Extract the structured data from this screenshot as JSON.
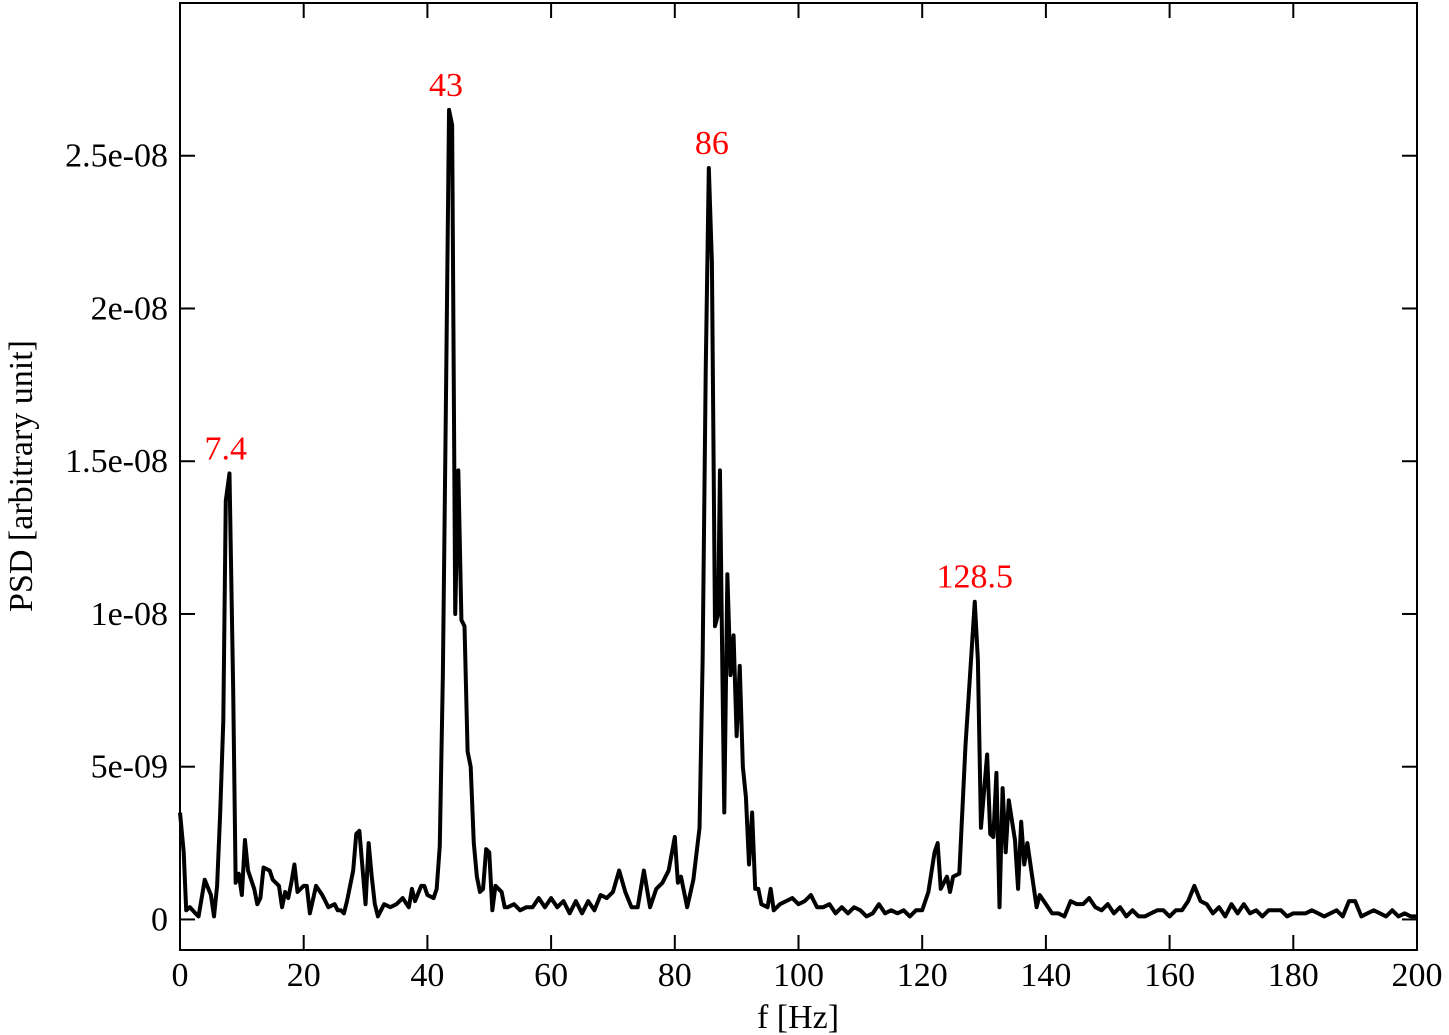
{
  "chart_data": {
    "type": "line",
    "xlabel": "f [Hz]",
    "ylabel": "PSD [arbitrary unit]",
    "color": "#000000",
    "xlim": [
      0,
      200
    ],
    "xticks": [
      0,
      20,
      40,
      60,
      80,
      100,
      120,
      140,
      160,
      180,
      200
    ],
    "ylim": [
      -1e-09,
      3e-08
    ],
    "yticks": [
      {
        "value": 0,
        "label": "0"
      },
      {
        "value": 5e-09,
        "label": "5e-09"
      },
      {
        "value": 1e-08,
        "label": "1e-08"
      },
      {
        "value": 1.5e-08,
        "label": "1.5e-08"
      },
      {
        "value": 2e-08,
        "label": "2e-08"
      },
      {
        "value": 2.5e-08,
        "label": "2.5e-08"
      }
    ],
    "annotations": [
      {
        "label": "7.4",
        "x": 7.4,
        "color": "#ff0000"
      },
      {
        "label": "43",
        "x": 43,
        "color": "#ff0000"
      },
      {
        "label": "86",
        "x": 86,
        "color": "#ff0000"
      },
      {
        "label": "128.5",
        "x": 128.5,
        "color": "#ff0000"
      }
    ],
    "x": [
      0,
      0.6,
      1,
      1.6,
      2.5,
      3,
      4,
      5,
      5.5,
      6,
      6.5,
      7,
      7.4,
      8,
      8.6,
      9,
      9.5,
      10,
      10.5,
      11,
      12,
      12.5,
      13,
      13.5,
      14.5,
      15,
      16,
      16.5,
      17,
      17.5,
      18,
      18.5,
      19,
      20,
      20.5,
      21,
      22,
      23,
      24,
      25,
      25.5,
      26,
      26.5,
      27,
      28,
      28.5,
      29,
      30,
      30.5,
      31,
      31.5,
      32,
      33,
      34,
      35,
      36,
      37,
      37.5,
      38,
      39,
      39.5,
      40,
      41,
      41.5,
      42,
      42.5,
      43,
      43.5,
      44,
      44.5,
      45,
      45.5,
      46,
      46.5,
      47,
      47.5,
      48,
      48.5,
      49,
      49.5,
      50,
      50.5,
      51,
      52,
      52.5,
      53,
      54,
      55,
      56,
      57,
      58,
      59,
      60,
      61,
      62,
      63,
      64,
      65,
      66,
      67,
      68,
      69,
      70,
      71,
      72,
      73,
      74,
      75,
      76,
      77,
      78,
      79,
      80,
      80.5,
      81,
      82,
      83,
      84,
      84.5,
      85,
      85.5,
      86,
      86.5,
      87,
      87.3,
      87.7,
      88,
      88.5,
      89,
      89.5,
      90,
      90.5,
      91,
      91.5,
      92,
      92.5,
      93,
      93.5,
      94,
      95,
      95.5,
      96,
      97,
      98,
      99,
      100,
      101,
      102,
      103,
      104,
      105,
      106,
      107,
      108,
      109,
      110,
      111,
      112,
      113,
      114,
      115,
      116,
      117,
      118,
      119,
      120,
      121,
      122,
      122.5,
      123,
      124,
      124.5,
      125,
      126,
      127,
      128.5,
      129,
      129.5,
      130.5,
      131,
      131.5,
      132,
      132.5,
      133,
      133.5,
      134,
      135,
      135.5,
      136,
      136.5,
      137,
      138,
      138.5,
      139,
      140,
      141,
      142,
      143,
      144,
      145,
      146,
      147,
      148,
      149,
      150,
      151,
      152,
      153,
      154,
      155,
      156,
      157,
      158,
      159,
      160,
      161,
      162,
      163,
      164,
      165,
      166,
      167,
      168,
      169,
      170,
      171,
      172,
      173,
      174,
      175,
      176,
      177,
      178,
      179,
      180,
      181,
      182,
      183,
      184,
      185,
      186,
      187,
      188,
      189,
      190,
      191,
      192,
      193,
      194,
      195,
      196,
      197,
      198,
      199,
      200
    ],
    "values": [
      3.5e-09,
      2.2e-09,
      3e-10,
      4e-10,
      2e-10,
      1e-10,
      1.3e-09,
      8e-10,
      1e-10,
      1.1e-09,
      3.5e-09,
      6.5e-09,
      1.37e-08,
      1.46e-08,
      7.5e-09,
      1.2e-09,
      1.5e-09,
      8e-10,
      2.6e-09,
      1.6e-09,
      1e-09,
      5e-10,
      7e-10,
      1.7e-09,
      1.6e-09,
      1.3e-09,
      1.1e-09,
      4e-10,
      9e-10,
      7e-10,
      1.2e-09,
      1.8e-09,
      9e-10,
      1.1e-09,
      1.1e-09,
      2e-10,
      1.1e-09,
      8e-10,
      4e-10,
      5e-10,
      3e-10,
      3e-10,
      2e-10,
      6e-10,
      1.6e-09,
      2.8e-09,
      2.9e-09,
      5e-10,
      2.5e-09,
      1.4e-09,
      5e-10,
      1e-10,
      5e-10,
      4e-10,
      5e-10,
      7e-10,
      4e-10,
      1e-09,
      6e-10,
      1.1e-09,
      1.1e-09,
      8e-10,
      7e-10,
      1e-09,
      2.4e-09,
      8e-09,
      1.7e-08,
      2.65e-08,
      2.6e-08,
      1e-08,
      1.47e-08,
      9.8e-09,
      9.6e-09,
      5.5e-09,
      5e-09,
      2.5e-09,
      1.4e-09,
      9e-10,
      1e-09,
      2.3e-09,
      2.2e-09,
      3e-10,
      1.1e-09,
      9e-10,
      4e-10,
      4e-10,
      5e-10,
      3e-10,
      4e-10,
      4e-10,
      7e-10,
      4e-10,
      7e-10,
      4e-10,
      6e-10,
      2e-10,
      6e-10,
      2e-10,
      6e-10,
      3e-10,
      8e-10,
      7e-10,
      9e-10,
      1.6e-09,
      9e-10,
      4e-10,
      4e-10,
      1.6e-09,
      4e-10,
      1e-09,
      1.2e-09,
      1.6e-09,
      2.7e-09,
      1.2e-09,
      1.4e-09,
      4e-10,
      1.3e-09,
      3e-09,
      8.5e-09,
      1.8e-08,
      2.46e-08,
      2.15e-08,
      9.6e-09,
      1e-08,
      1.47e-08,
      8e-09,
      3.5e-09,
      1.13e-08,
      8e-09,
      9.3e-09,
      6e-09,
      8.3e-09,
      5e-09,
      4e-09,
      1.8e-09,
      3.5e-09,
      1e-09,
      1e-09,
      5e-10,
      4e-10,
      1e-09,
      3e-10,
      5e-10,
      6e-10,
      7e-10,
      5e-10,
      6e-10,
      8e-10,
      4e-10,
      4e-10,
      5e-10,
      2e-10,
      4e-10,
      2e-10,
      4e-10,
      3e-10,
      1e-10,
      2e-10,
      5e-10,
      2e-10,
      3e-10,
      2e-10,
      3e-10,
      1e-10,
      3e-10,
      3e-10,
      9e-10,
      2.2e-09,
      2.5e-09,
      1e-09,
      1.4e-09,
      9e-10,
      1.4e-09,
      1.5e-09,
      5.7e-09,
      1.04e-08,
      8.5e-09,
      3e-09,
      5.4e-09,
      2.8e-09,
      2.7e-09,
      4.8e-09,
      4e-10,
      4.3e-09,
      2.2e-09,
      3.9e-09,
      2.6e-09,
      1e-09,
      3.2e-09,
      1.8e-09,
      2.5e-09,
      1.1e-09,
      4e-10,
      8e-10,
      5e-10,
      2e-10,
      2e-10,
      1e-10,
      6e-10,
      5e-10,
      5e-10,
      7e-10,
      4e-10,
      3e-10,
      5e-10,
      2e-10,
      4e-10,
      1e-10,
      3e-10,
      1e-10,
      1e-10,
      2e-10,
      3e-10,
      3e-10,
      1e-10,
      3e-10,
      3e-10,
      6e-10,
      1.1e-09,
      6e-10,
      5e-10,
      2e-10,
      4e-10,
      1e-10,
      5e-10,
      2e-10,
      5e-10,
      2e-10,
      3e-10,
      1e-10,
      3e-10,
      3e-10,
      3e-10,
      1e-10,
      2e-10,
      2e-10,
      2e-10,
      3e-10,
      2e-10,
      1e-10,
      2e-10,
      3e-10,
      1e-10,
      6e-10,
      6e-10,
      1e-10,
      2e-10,
      3e-10,
      2e-10,
      1e-10,
      3e-10,
      1e-10,
      2e-10,
      1e-10,
      1e-10
    ]
  }
}
